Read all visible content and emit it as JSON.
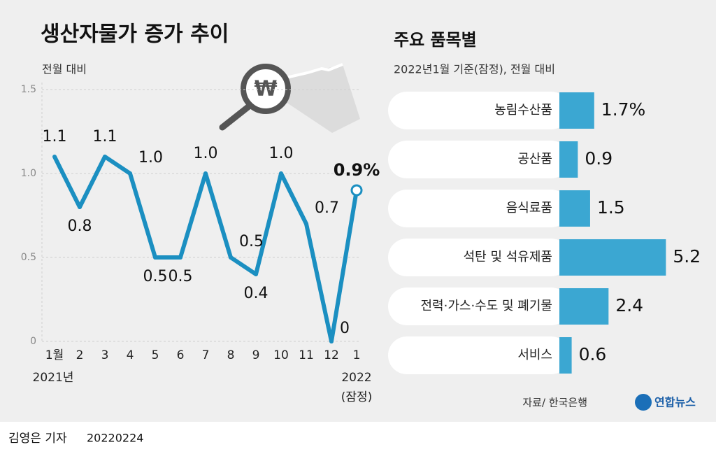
{
  "chart_data": [
    {
      "type": "line",
      "title": "생산자물가 증가 추이",
      "subtitle": "전월 대비",
      "categories": [
        "1월",
        "2",
        "3",
        "4",
        "5",
        "6",
        "7",
        "8",
        "9",
        "10",
        "11",
        "12",
        "1"
      ],
      "values": [
        1.1,
        0.8,
        1.1,
        1.0,
        0.5,
        0.5,
        1.0,
        0.5,
        0.4,
        1.0,
        0.7,
        0,
        0.9
      ],
      "value_labels": [
        "1.1",
        "0.8",
        "1.1",
        "1.0",
        "0.5",
        "0.5",
        "1.0",
        "0.5",
        "0.4",
        "1.0",
        "0.7",
        "0",
        "0.9%"
      ],
      "color": "#1b8fc1",
      "ylim": [
        0,
        1.5
      ],
      "yticks": [
        0,
        0.5,
        {
          "value": 1,
          "label": "1.0"
        },
        1.5
      ],
      "grid": true,
      "x_annotations": [
        "2021년",
        "2022",
        "(잠정)"
      ]
    },
    {
      "type": "hbar",
      "title": "주요 품목별",
      "subtitle": "2022년1월 기준(잠정), 전월 대비",
      "categories": [
        "농림수산품",
        "공산품",
        "음식료품",
        "석탄 및 석유제품",
        "전력·가스·수도 및 폐기물",
        "서비스"
      ],
      "values": [
        1.7,
        0.9,
        1.5,
        5.2,
        2.4,
        0.6
      ],
      "value_labels": [
        "1.7%",
        "0.9",
        "1.5",
        "5.2",
        "2.4",
        "0.6"
      ],
      "color": "#3ba7d2",
      "source": "자료/ 한국은행"
    }
  ],
  "logo": "연합뉴스",
  "footer": {
    "author": "김영은 기자",
    "date": "20220224"
  }
}
